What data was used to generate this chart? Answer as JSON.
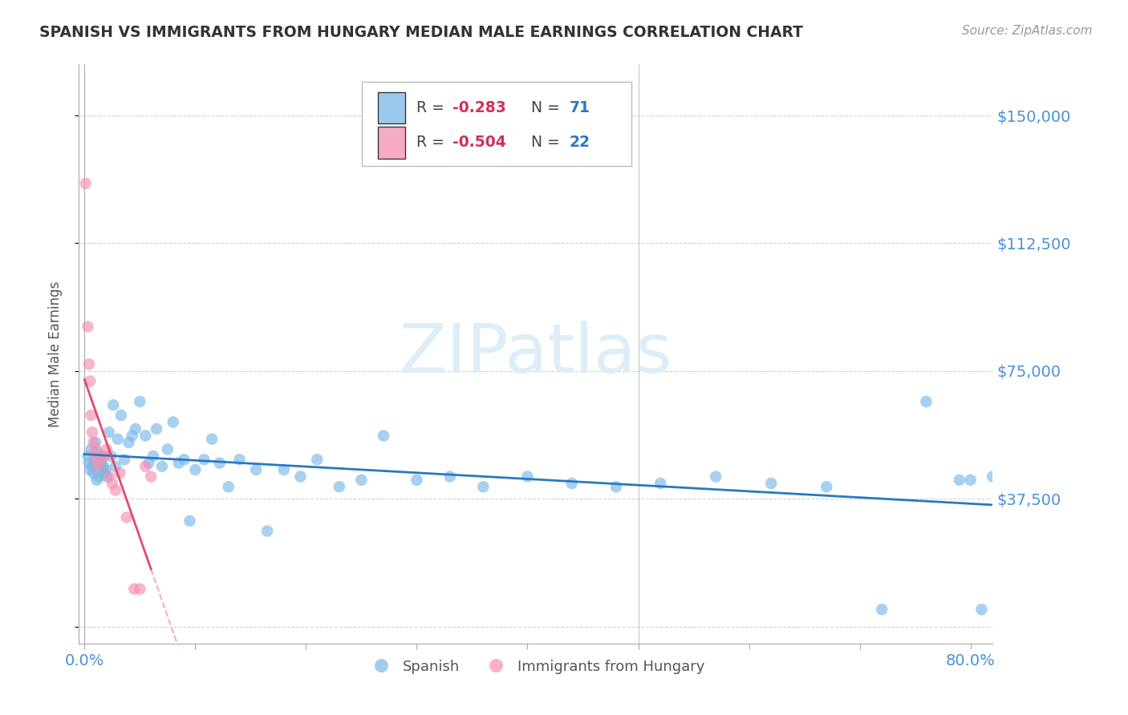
{
  "title": "SPANISH VS IMMIGRANTS FROM HUNGARY MEDIAN MALE EARNINGS CORRELATION CHART",
  "source": "Source: ZipAtlas.com",
  "ylabel": "Median Male Earnings",
  "xlim": [
    -0.005,
    0.82
  ],
  "ylim": [
    -5000,
    165000
  ],
  "yticks": [
    0,
    37500,
    75000,
    112500,
    150000
  ],
  "ytick_labels": [
    "",
    "$37,500",
    "$75,000",
    "$112,500",
    "$150,000"
  ],
  "xticks": [
    0.0,
    0.1,
    0.2,
    0.3,
    0.4,
    0.5,
    0.6,
    0.7,
    0.8
  ],
  "xtick_labels": [
    "0.0%",
    "",
    "",
    "",
    "",
    "",
    "",
    "",
    "80.0%"
  ],
  "blue_color": "#7ab8e8",
  "pink_color": "#f48fb1",
  "blue_line_color": "#2979c0",
  "pink_line_color": "#e8476a",
  "tick_label_color": "#4a90d9",
  "watermark_color": "#ddeef8",
  "background_color": "#ffffff",
  "grid_color": "#cccccc",
  "spanish_x": [
    0.003,
    0.004,
    0.005,
    0.006,
    0.007,
    0.008,
    0.009,
    0.01,
    0.011,
    0.012,
    0.013,
    0.014,
    0.015,
    0.016,
    0.017,
    0.018,
    0.019,
    0.02,
    0.022,
    0.024,
    0.026,
    0.028,
    0.03,
    0.033,
    0.036,
    0.04,
    0.043,
    0.046,
    0.05,
    0.055,
    0.058,
    0.062,
    0.065,
    0.07,
    0.075,
    0.08,
    0.085,
    0.09,
    0.095,
    0.1,
    0.108,
    0.115,
    0.122,
    0.13,
    0.14,
    0.155,
    0.165,
    0.18,
    0.195,
    0.21,
    0.23,
    0.25,
    0.27,
    0.3,
    0.33,
    0.36,
    0.4,
    0.44,
    0.48,
    0.52,
    0.57,
    0.62,
    0.67,
    0.72,
    0.76,
    0.79,
    0.8,
    0.81,
    0.82,
    0.83
  ],
  "spanish_y": [
    50000,
    48000,
    46000,
    52000,
    47000,
    45000,
    49000,
    54000,
    43000,
    51000,
    44000,
    50000,
    48000,
    46000,
    47000,
    45000,
    46000,
    44000,
    57000,
    50000,
    65000,
    47000,
    55000,
    62000,
    49000,
    54000,
    56000,
    58000,
    66000,
    56000,
    48000,
    50000,
    58000,
    47000,
    52000,
    60000,
    48000,
    49000,
    31000,
    46000,
    49000,
    55000,
    48000,
    41000,
    49000,
    46000,
    28000,
    46000,
    44000,
    49000,
    41000,
    43000,
    56000,
    43000,
    44000,
    41000,
    44000,
    42000,
    41000,
    42000,
    44000,
    42000,
    41000,
    5000,
    66000,
    43000,
    43000,
    5000,
    44000,
    43000
  ],
  "hungary_x": [
    0.001,
    0.003,
    0.004,
    0.005,
    0.006,
    0.007,
    0.008,
    0.009,
    0.01,
    0.012,
    0.015,
    0.018,
    0.02,
    0.022,
    0.025,
    0.028,
    0.032,
    0.038,
    0.045,
    0.05,
    0.055,
    0.06
  ],
  "hungary_y": [
    130000,
    88000,
    77000,
    72000,
    62000,
    57000,
    54000,
    50000,
    52000,
    47000,
    49000,
    50000,
    52000,
    44000,
    42000,
    40000,
    45000,
    32000,
    11000,
    11000,
    47000,
    44000
  ]
}
